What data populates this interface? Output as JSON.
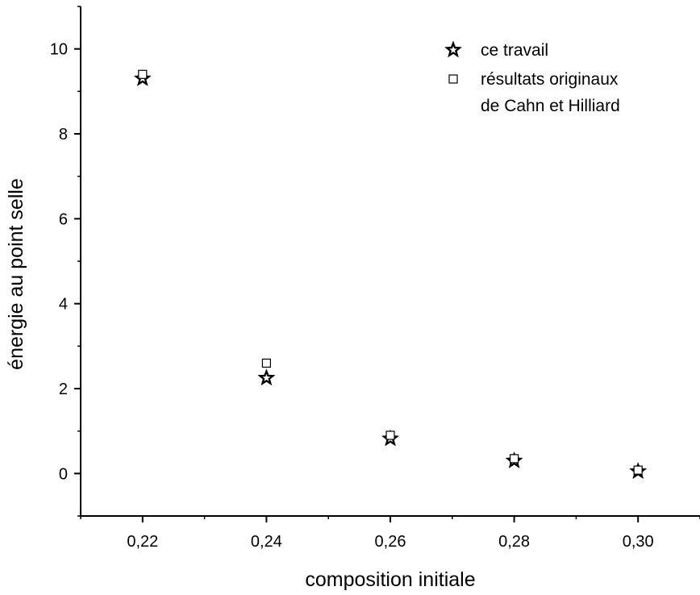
{
  "chart_data": {
    "type": "scatter",
    "xlabel": "composition initiale",
    "ylabel": "énergie au point selle",
    "xlim": [
      0.21,
      0.31
    ],
    "ylim": [
      -1,
      11
    ],
    "x_ticks": [
      {
        "value": 0.22,
        "label": "0,22"
      },
      {
        "value": 0.24,
        "label": "0,24"
      },
      {
        "value": 0.26,
        "label": "0,26"
      },
      {
        "value": 0.28,
        "label": "0,28"
      },
      {
        "value": 0.3,
        "label": "0,30"
      }
    ],
    "y_ticks": [
      {
        "value": 0,
        "label": "0"
      },
      {
        "value": 2,
        "label": "2"
      },
      {
        "value": 4,
        "label": "4"
      },
      {
        "value": 6,
        "label": "6"
      },
      {
        "value": 8,
        "label": "8"
      },
      {
        "value": 10,
        "label": "10"
      }
    ],
    "grid": false,
    "legend_position": "top-right",
    "series": [
      {
        "name": "ce travail",
        "marker": "filled-star",
        "color": "#000000",
        "x": [
          0.22,
          0.24,
          0.26,
          0.28,
          0.3
        ],
        "y": [
          9.3,
          2.25,
          0.82,
          0.3,
          0.05
        ]
      },
      {
        "name": "résultats originaux de Cahn et Hilliard",
        "name_lines": [
          "résultats originaux",
          "de Cahn et Hilliard"
        ],
        "marker": "open-square",
        "color": "#000000",
        "x": [
          0.22,
          0.24,
          0.26,
          0.28,
          0.3
        ],
        "y": [
          9.4,
          2.6,
          0.9,
          0.35,
          0.08
        ]
      }
    ]
  }
}
